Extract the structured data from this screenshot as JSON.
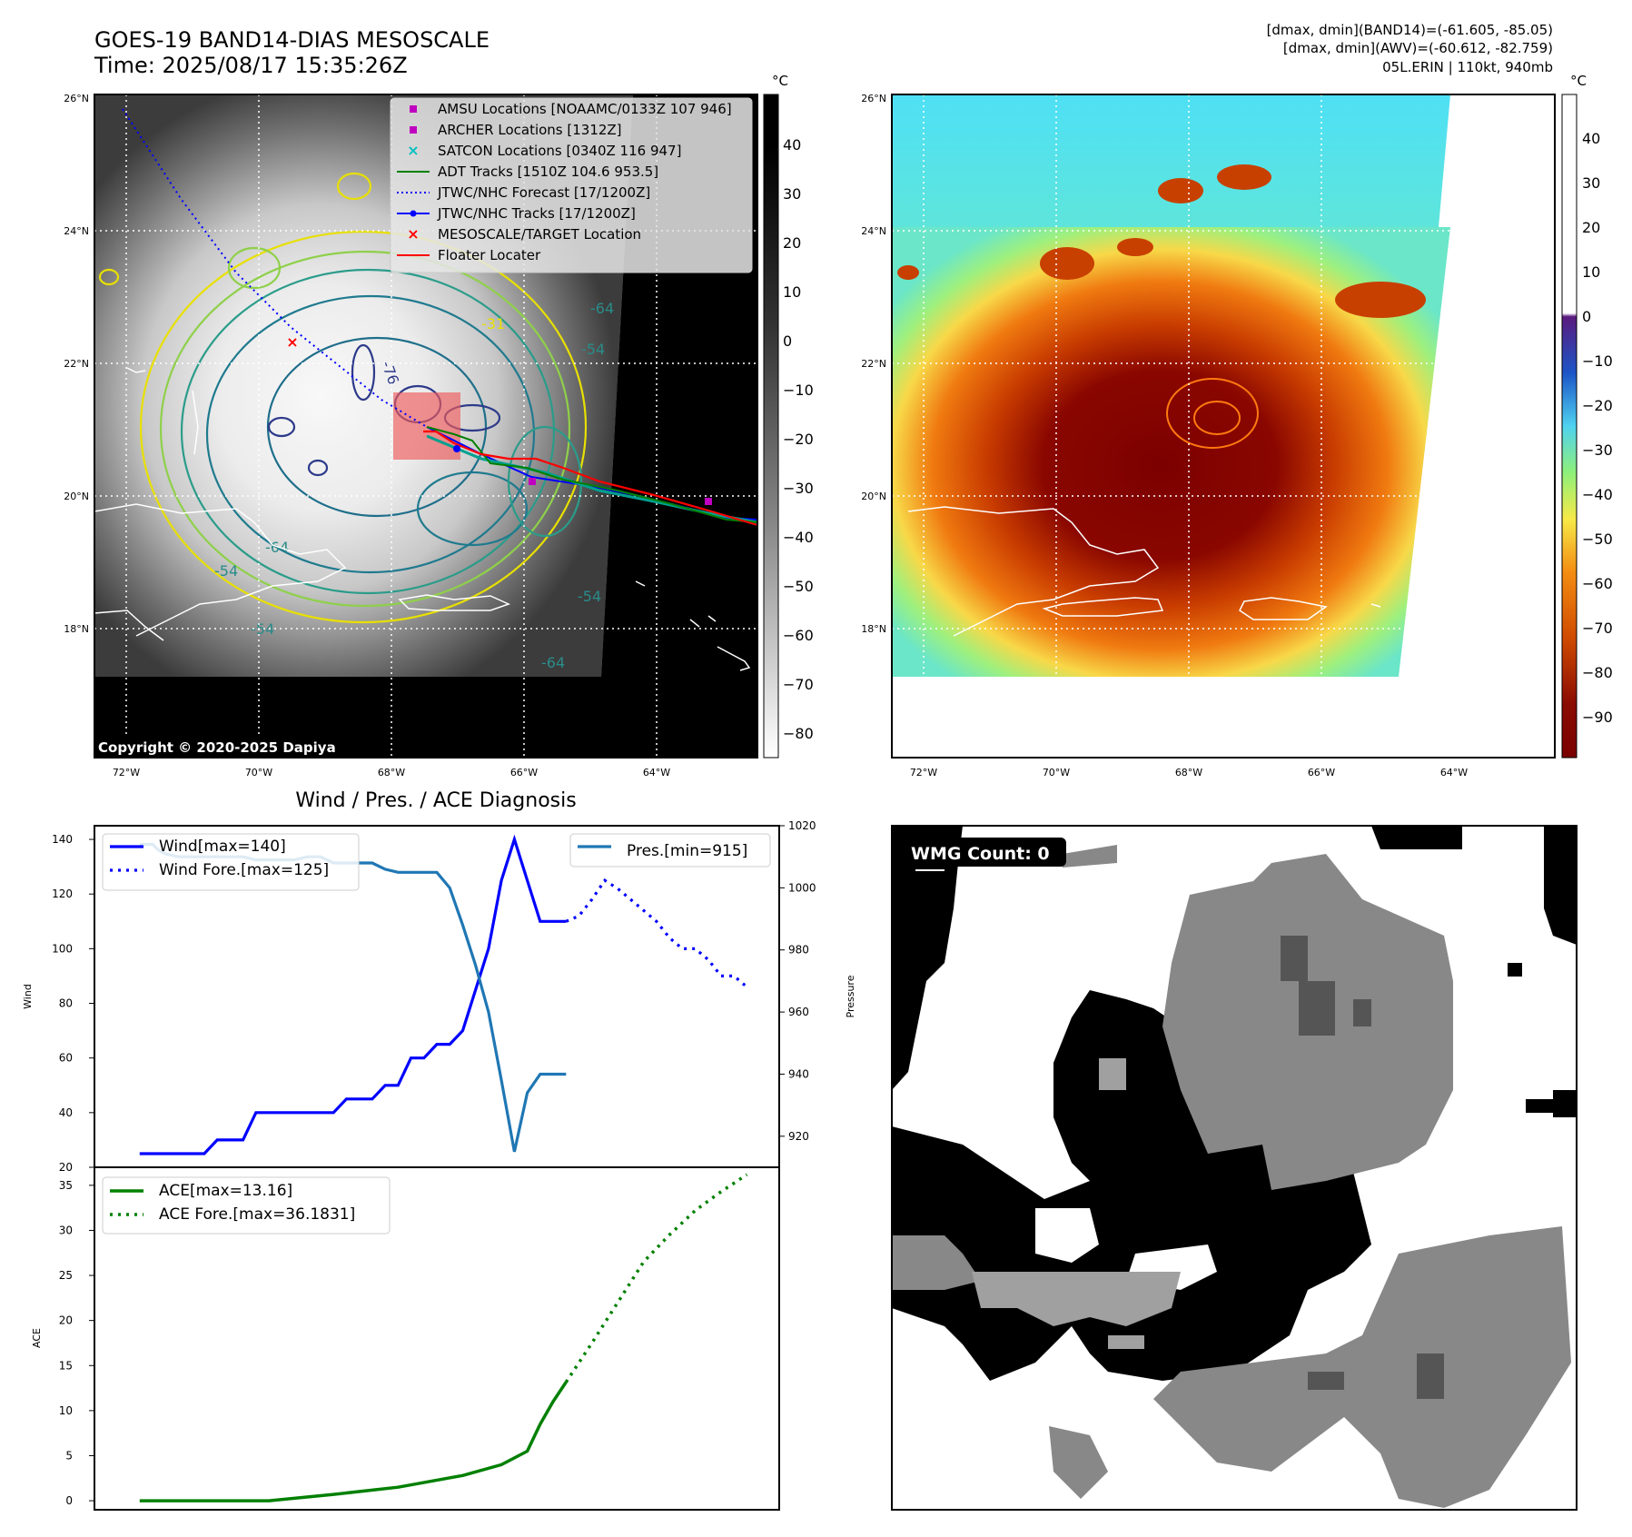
{
  "header": {
    "title": "GOES-19 BAND14-DIAS MESOSCALE",
    "time": "Time: 2025/08/17 15:35:26Z",
    "stats_band14": "[dmax, dmin](BAND14)=(-61.605, -85.05)",
    "stats_awv": "[dmax, dmin](AWV)=(-60.612, -82.759)",
    "storm": "05L.ERIN | 110kt, 940mb"
  },
  "map_panel": {
    "lat_labels": [
      "26°N",
      "24°N",
      "22°N",
      "20°N",
      "18°N"
    ],
    "lon_labels": [
      "72°W",
      "70°W",
      "68°W",
      "66°W",
      "64°W"
    ],
    "copyright": "Copyright © 2020-2025 Dapiya",
    "legend": [
      {
        "label": "AMSU Locations [NOAAMC/0133Z 107 946]",
        "marker": "square",
        "color": "#c000c0"
      },
      {
        "label": "ARCHER Locations [1312Z]",
        "marker": "square",
        "color": "#c000c0"
      },
      {
        "label": "SATCON Locations [0340Z 116 947]",
        "marker": "x",
        "color": "#00c0c0"
      },
      {
        "label": "ADT Tracks [1510Z 104.6 953.5]",
        "marker": "line",
        "color": "#008000"
      },
      {
        "label": "JTWC/NHC Forecast [17/1200Z]",
        "marker": "dotted",
        "color": "#0000ff"
      },
      {
        "label": "JTWC/NHC Tracks [17/1200Z]",
        "marker": "line-dot",
        "color": "#0000ff"
      },
      {
        "label": "MESOSCALE/TARGET Location",
        "marker": "x",
        "color": "#ff0000"
      },
      {
        "label": "Floater Locater",
        "marker": "line",
        "color": "#ff0000"
      }
    ],
    "contour_labels": [
      "-31",
      "-54",
      "-64",
      "-76",
      "-64",
      "-54",
      "-54",
      "-54",
      "-64"
    ],
    "colorbar_unit": "°C",
    "colorbar_ticks": [
      "40",
      "30",
      "20",
      "10",
      "0",
      "−10",
      "−20",
      "−30",
      "−40",
      "−50",
      "−60",
      "−70",
      "−80"
    ]
  },
  "awv_panel": {
    "lat_labels": [
      "26°N",
      "24°N",
      "22°N",
      "20°N",
      "18°N"
    ],
    "lon_labels": [
      "72°W",
      "70°W",
      "68°W",
      "66°W",
      "64°W"
    ],
    "colorbar_unit": "°C",
    "colorbar_ticks": [
      "40",
      "30",
      "20",
      "10",
      "0",
      "−10",
      "−20",
      "−30",
      "−40",
      "−50",
      "−60",
      "−70",
      "−80",
      "−90"
    ]
  },
  "wmg_panel": {
    "label": "WMG Count: 0"
  },
  "chart_data": [
    {
      "type": "line",
      "title": "Wind / Pres. / ACE Diagnosis",
      "ylabel": "Wind",
      "ylabel_right": "Pressure",
      "ylim": [
        20,
        145
      ],
      "ylim_right": [
        910,
        1020
      ],
      "yticks": [
        20,
        40,
        60,
        80,
        100,
        120,
        140
      ],
      "yticks_right": [
        920,
        940,
        960,
        980,
        1000,
        1020
      ],
      "series": [
        {
          "name": "Wind[max=140]",
          "color": "#0000ff",
          "style": "solid",
          "axis": "left",
          "x": [
            0,
            1,
            1.5,
            2,
            3,
            4,
            5,
            6,
            7,
            8,
            9,
            10,
            11,
            12,
            13,
            14,
            15,
            16,
            17,
            18,
            19,
            20,
            21,
            22,
            23,
            24,
            25,
            26,
            27,
            28,
            29,
            30,
            31,
            32,
            33
          ],
          "values": [
            25,
            25,
            25,
            25,
            25,
            25,
            25,
            30,
            30,
            30,
            40,
            40,
            40,
            40,
            40,
            40,
            40,
            45,
            45,
            45,
            50,
            50,
            60,
            60,
            65,
            65,
            70,
            85,
            100,
            125,
            140,
            125,
            110,
            110,
            110
          ]
        },
        {
          "name": "Wind Fore.[max=125]",
          "color": "#0000ff",
          "style": "dotted",
          "axis": "left",
          "x": [
            33,
            34,
            35,
            36,
            37,
            38,
            39,
            40,
            41,
            42,
            43,
            44,
            45,
            46,
            47
          ],
          "values": [
            110,
            112,
            118,
            125,
            122,
            118,
            114,
            110,
            104,
            100,
            100,
            96,
            90,
            90,
            86
          ]
        },
        {
          "name": "Pres.[min=915]",
          "color": "#1f77b4",
          "style": "solid",
          "axis": "right",
          "x": [
            0,
            0.5,
            1,
            1.5,
            2,
            3,
            4,
            5,
            6,
            7,
            8,
            9,
            10,
            11,
            12,
            13,
            14,
            15,
            16,
            17,
            18,
            19,
            20,
            21,
            22,
            23,
            24,
            25,
            26,
            27,
            28,
            29,
            30,
            31,
            32,
            33
          ],
          "values": [
            1014,
            1014,
            1014,
            1012,
            1011,
            1010,
            1010,
            1010,
            1010,
            1010,
            1010,
            1009,
            1009,
            1009,
            1009,
            1010,
            1010,
            1008,
            1008,
            1008,
            1008,
            1006,
            1005,
            1005,
            1005,
            1005,
            1000,
            988,
            975,
            960,
            938,
            915,
            934,
            940,
            940,
            940
          ]
        }
      ]
    },
    {
      "type": "line",
      "ylabel": "ACE",
      "ylim": [
        -1,
        37
      ],
      "yticks": [
        0,
        5,
        10,
        15,
        20,
        25,
        30,
        35
      ],
      "series": [
        {
          "name": "ACE[max=13.16]",
          "color": "#008000",
          "style": "solid",
          "x": [
            0,
            5,
            10,
            15,
            20,
            25,
            28,
            30,
            31,
            32,
            33
          ],
          "values": [
            0,
            0,
            0,
            0.7,
            1.5,
            2.8,
            4.0,
            5.5,
            8.5,
            11.0,
            13.16
          ]
        },
        {
          "name": "ACE Fore.[max=36.1831]",
          "color": "#008000",
          "style": "dotted",
          "x": [
            33,
            35,
            37,
            39,
            41,
            43,
            45,
            47
          ],
          "values": [
            13.16,
            17.5,
            22,
            26.5,
            29.5,
            32.2,
            34.3,
            36.18
          ]
        }
      ]
    }
  ]
}
